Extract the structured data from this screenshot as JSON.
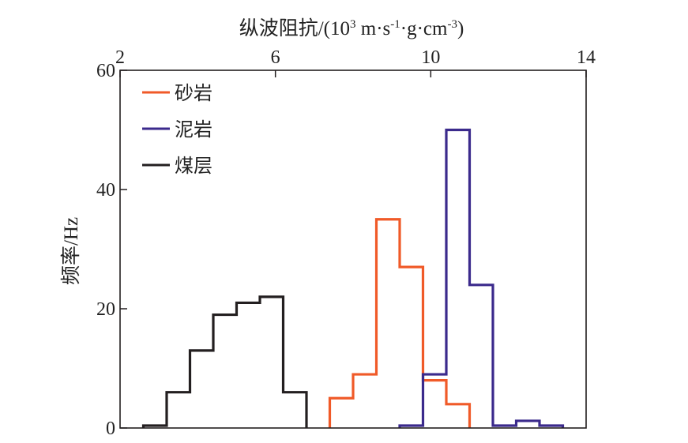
{
  "chart_data": {
    "type": "histogram",
    "xlabel_prefix": "纵波阻抗/(10",
    "xlabel_exp": "3",
    "xlabel_mid1": " m·s",
    "xlabel_exp2": "-1",
    "xlabel_mid2": "·g·cm",
    "xlabel_exp3": "-3",
    "xlabel_suffix": ")",
    "ylabel": "频率/Hz",
    "xlim": [
      2,
      14
    ],
    "ylim": [
      0,
      60
    ],
    "xticks": [
      2,
      6,
      10,
      14
    ],
    "yticks": [
      0,
      20,
      40,
      60
    ],
    "xtick_labels": [
      "2",
      "6",
      "10",
      "14"
    ],
    "ytick_labels": [
      "0",
      "20",
      "40",
      "60"
    ],
    "grid": false,
    "legend_position": "top-left",
    "series": [
      {
        "name": "砂岩",
        "color": "#f05a28",
        "bin_width": 0.6,
        "bin_left_edges": [
          7.4,
          8.0,
          8.6,
          9.2,
          9.8,
          10.4
        ],
        "values": [
          5,
          9,
          35,
          27,
          8,
          4
        ]
      },
      {
        "name": "泥岩",
        "color": "#3b2a8c",
        "bin_width": 0.6,
        "bin_left_edges": [
          9.2,
          9.8,
          10.4,
          11.0,
          11.6,
          12.2,
          12.8
        ],
        "values": [
          0.4,
          9,
          50,
          24,
          0.4,
          1.2,
          0.4
        ]
      },
      {
        "name": "煤层",
        "color": "#231f20",
        "bin_width": 0.6,
        "bin_left_edges": [
          2.6,
          3.2,
          3.8,
          4.4,
          5.0,
          5.6,
          6.2
        ],
        "values": [
          0.4,
          6,
          13,
          19,
          21,
          22,
          6
        ]
      }
    ]
  }
}
